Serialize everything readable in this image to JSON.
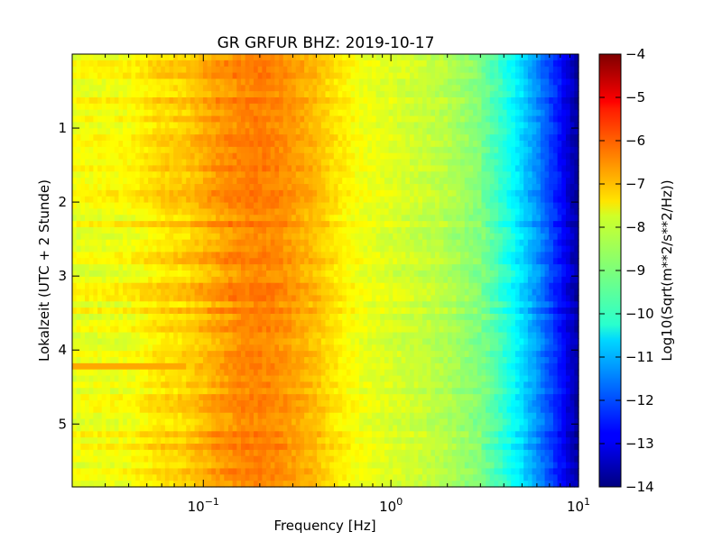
{
  "chart_data": {
    "type": "heatmap",
    "title": "GR GRFUR BHZ: 2019-10-17",
    "xlabel": "Frequency [Hz]",
    "ylabel": "Lokalzeit (UTC + 2 Stunde)",
    "x_scale": "log",
    "xlim": [
      0.02,
      10
    ],
    "ylim": [
      0,
      5.85
    ],
    "x_ticks": [
      {
        "value": 0.1,
        "base": "10",
        "exp": "−1"
      },
      {
        "value": 1,
        "base": "10",
        "exp": "0"
      },
      {
        "value": 10,
        "base": "10",
        "exp": "1"
      }
    ],
    "y_ticks": [
      1,
      2,
      3,
      4,
      5
    ],
    "y_tick_labels": [
      "1",
      "2",
      "3",
      "4",
      "5"
    ],
    "colorbar": {
      "label": "Log10(Sqrt(m**2/s**2/Hz))",
      "range": [
        -14,
        -4
      ],
      "ticks": [
        -4,
        -5,
        -6,
        -7,
        -8,
        -9,
        -10,
        -11,
        -12,
        -13,
        -14
      ],
      "tick_labels": [
        "−4",
        "−5",
        "−6",
        "−7",
        "−8",
        "−9",
        "−10",
        "−11",
        "−12",
        "−13",
        "−14"
      ],
      "colormap": "jet"
    },
    "spectrum_profile": {
      "frequency_hz": [
        0.02,
        0.04,
        0.06,
        0.08,
        0.12,
        0.15,
        0.2,
        0.25,
        0.3,
        0.4,
        0.5,
        0.7,
        1.0,
        1.5,
        2.0,
        3.0,
        4.0,
        5.0,
        6.0,
        7.0,
        8.0,
        9.0,
        10.0
      ],
      "level": [
        -7.9,
        -7.8,
        -7.4,
        -7.3,
        -6.8,
        -6.6,
        -6.5,
        -6.6,
        -6.8,
        -7.1,
        -7.5,
        -7.9,
        -8.1,
        -8.3,
        -8.5,
        -9.0,
        -9.8,
        -10.6,
        -11.3,
        -12.0,
        -12.6,
        -13.2,
        -13.7
      ]
    },
    "anomaly": {
      "time_range": [
        4.18,
        4.28
      ],
      "freq_max_hz": 0.08,
      "level": -6.9
    }
  }
}
